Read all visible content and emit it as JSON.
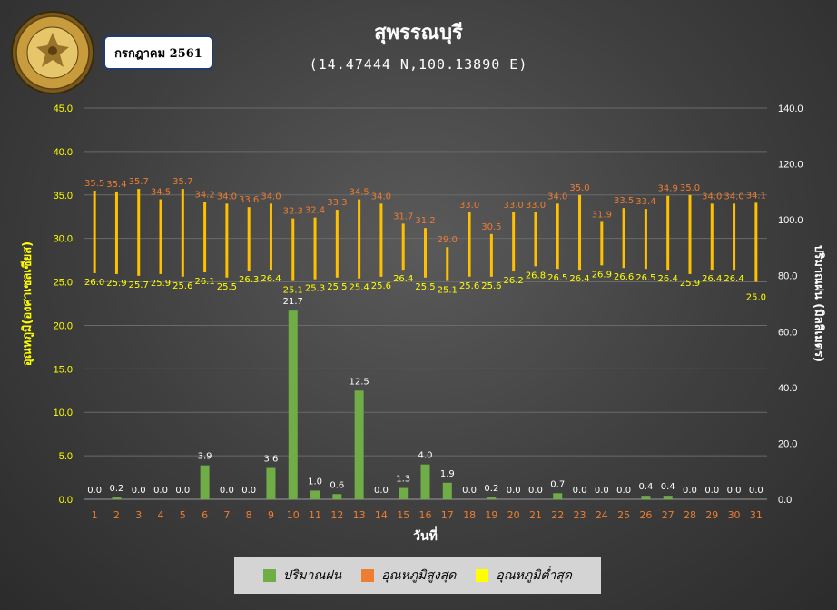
{
  "header": {
    "title": "สุพรรณบุรี",
    "subtitle": "(14.47444 N,100.13890 E)",
    "date_label": "กรกฎาคม 2561"
  },
  "logo": {
    "icon": "meteorological-department-seal",
    "text_top": "กรมอุตุนิยมวิทยา",
    "text_bottom": "METEOROLOGICAL DEPARTMENT"
  },
  "legend": {
    "rain_label": "ปริมาณฝน",
    "max_label": "อุณหภูมิสูงสุด",
    "min_label": "อุณหภูมิต่ำสุด"
  },
  "colors": {
    "rain": "#70ad47",
    "max_temp": "#ed7d31",
    "min_temp": "#ffff00",
    "range_bar": "#ffc000",
    "left_axis_text": "#ffff00",
    "x_tick_text": "#ed7d31",
    "right_axis_text": "#ffffff"
  },
  "chart_data": {
    "type": "bar",
    "xlabel": "วันที่",
    "ylabel_left": "อุณหภูมิ(องศาเซลเซียส)",
    "ylabel_right": "ปริมาณฝน (มิลลิเมตร)",
    "ylim_left": [
      0,
      45
    ],
    "ylim_right": [
      0,
      140
    ],
    "yticks_left": [
      "0.0",
      "5.0",
      "10.0",
      "15.0",
      "20.0",
      "25.0",
      "30.0",
      "35.0",
      "40.0",
      "45.0"
    ],
    "yticks_right": [
      "0.0",
      "20.0",
      "40.0",
      "60.0",
      "80.0",
      "100.0",
      "120.0",
      "140.0"
    ],
    "categories": [
      "1",
      "2",
      "3",
      "4",
      "5",
      "6",
      "7",
      "8",
      "9",
      "10",
      "11",
      "12",
      "13",
      "14",
      "15",
      "16",
      "17",
      "18",
      "19",
      "20",
      "21",
      "22",
      "23",
      "24",
      "25",
      "26",
      "27",
      "28",
      "29",
      "30",
      "31"
    ],
    "grid": true,
    "legend_position": "bottom",
    "series": [
      {
        "name": "ปริมาณฝน",
        "axis": "left",
        "values": [
          0.0,
          0.2,
          0.0,
          0.0,
          0.0,
          3.9,
          0.0,
          0.0,
          3.6,
          21.7,
          1.0,
          0.6,
          12.5,
          0.0,
          1.3,
          4.0,
          1.9,
          0.0,
          0.2,
          0.0,
          0.0,
          0.7,
          0.0,
          0.0,
          0.0,
          0.4,
          0.4,
          0.0,
          0.0,
          0.0,
          0.0
        ]
      },
      {
        "name": "อุณหภูมิสูงสุด",
        "axis": "left",
        "values": [
          35.5,
          35.4,
          35.7,
          34.5,
          35.7,
          34.2,
          34.0,
          33.6,
          34.0,
          32.3,
          32.4,
          33.3,
          34.5,
          34.0,
          31.7,
          31.2,
          29.0,
          33.0,
          30.5,
          33.0,
          33.0,
          34.0,
          35.0,
          31.9,
          33.5,
          33.4,
          34.9,
          35.0,
          34.0,
          34.0,
          34.1
        ]
      },
      {
        "name": "อุณหภูมิต่ำสุด",
        "axis": "left",
        "values": [
          26.0,
          25.9,
          25.7,
          25.9,
          25.6,
          26.1,
          25.5,
          26.3,
          26.4,
          25.1,
          25.3,
          25.5,
          25.4,
          25.6,
          26.4,
          25.5,
          25.1,
          25.6,
          25.6,
          26.2,
          26.8,
          26.5,
          26.4,
          26.9,
          26.6,
          26.5,
          26.4,
          25.9,
          26.4,
          26.4,
          25.0
        ]
      }
    ]
  }
}
